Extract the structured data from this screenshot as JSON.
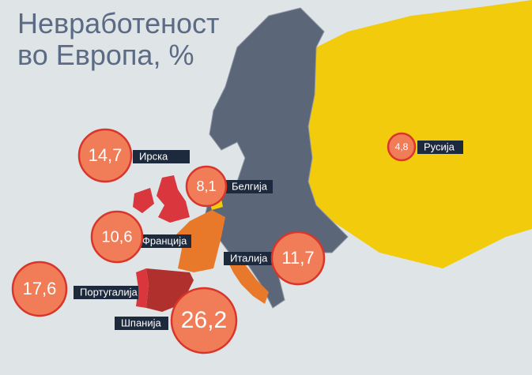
{
  "title": {
    "line1": "Невработеност",
    "line2": "во Европа, %"
  },
  "countries": [
    {
      "name": "Ирска",
      "value": "14,7"
    },
    {
      "name": "Белгија",
      "value": "8,1"
    },
    {
      "name": "Франција",
      "value": "10,6"
    },
    {
      "name": "Италија",
      "value": "11,7"
    },
    {
      "name": "Португалија",
      "value": "17,6"
    },
    {
      "name": "Шпанија",
      "value": "26,2"
    },
    {
      "name": "Русија",
      "value": "4,8"
    }
  ]
}
